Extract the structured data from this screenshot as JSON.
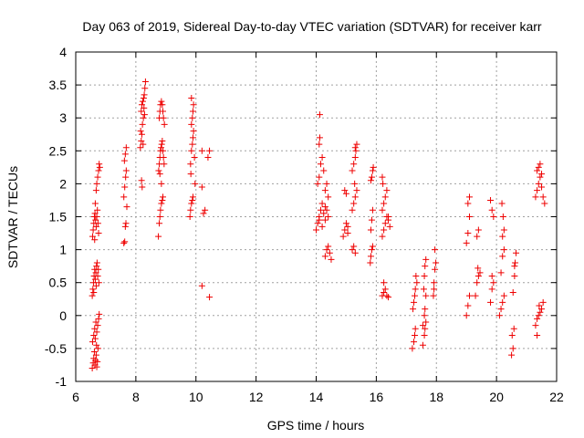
{
  "chart_data": {
    "type": "scatter",
    "title": "Day 063 of 2019, Sidereal Day-to-day VTEC variation (SDTVAR) for receiver karr",
    "xlabel": "GPS time / hours",
    "ylabel": "SDTVAR / TECUs",
    "xlim": [
      6,
      22
    ],
    "ylim": [
      -1,
      4
    ],
    "xticks": [
      6,
      8,
      10,
      12,
      14,
      16,
      18,
      20,
      22
    ],
    "yticks": [
      -1,
      -0.5,
      0,
      0.5,
      1,
      1.5,
      2,
      2.5,
      3,
      3.5,
      4
    ],
    "xtick_labels": [
      "6",
      "8",
      "10",
      "12",
      "14",
      "16",
      "18",
      "20",
      "22"
    ],
    "ytick_labels": [
      "-1",
      "-0.5",
      "0",
      "0.5",
      "1",
      "1.5",
      "2",
      "2.5",
      "3",
      "3.5",
      "4"
    ],
    "grid": true,
    "marker": "+",
    "marker_color": "#ee0000",
    "series": [
      {
        "name": "SDTVAR",
        "points": [
          [
            6.55,
            -0.8
          ],
          [
            6.58,
            -0.72
          ],
          [
            6.6,
            -0.65
          ],
          [
            6.62,
            -0.55
          ],
          [
            6.64,
            -0.75
          ],
          [
            6.66,
            -0.68
          ],
          [
            6.68,
            -0.6
          ],
          [
            6.7,
            -0.78
          ],
          [
            6.72,
            -0.7
          ],
          [
            6.74,
            -0.5
          ],
          [
            6.56,
            -0.4
          ],
          [
            6.6,
            -0.3
          ],
          [
            6.63,
            -0.2
          ],
          [
            6.67,
            -0.1
          ],
          [
            6.7,
            -0.25
          ],
          [
            6.73,
            -0.15
          ],
          [
            6.76,
            -0.05
          ],
          [
            6.78,
            0.02
          ],
          [
            6.65,
            -0.35
          ],
          [
            6.69,
            -0.45
          ],
          [
            6.55,
            0.3
          ],
          [
            6.57,
            0.4
          ],
          [
            6.59,
            0.5
          ],
          [
            6.61,
            0.6
          ],
          [
            6.63,
            0.7
          ],
          [
            6.65,
            0.55
          ],
          [
            6.67,
            0.65
          ],
          [
            6.69,
            0.75
          ],
          [
            6.71,
            0.8
          ],
          [
            6.73,
            0.6
          ],
          [
            6.75,
            0.7
          ],
          [
            6.77,
            0.5
          ],
          [
            6.6,
            0.35
          ],
          [
            6.68,
            0.45
          ],
          [
            6.56,
            1.2
          ],
          [
            6.58,
            1.3
          ],
          [
            6.6,
            1.4
          ],
          [
            6.62,
            1.5
          ],
          [
            6.64,
            1.55
          ],
          [
            6.66,
            1.45
          ],
          [
            6.68,
            1.35
          ],
          [
            6.7,
            1.5
          ],
          [
            6.72,
            1.6
          ],
          [
            6.74,
            1.4
          ],
          [
            6.76,
            1.25
          ],
          [
            6.63,
            1.15
          ],
          [
            6.65,
            1.7
          ],
          [
            6.68,
            1.9
          ],
          [
            6.7,
            2.0
          ],
          [
            6.73,
            2.1
          ],
          [
            6.76,
            2.2
          ],
          [
            6.78,
            2.3
          ],
          [
            6.8,
            2.25
          ],
          [
            7.6,
            1.1
          ],
          [
            7.63,
            1.12
          ],
          [
            7.65,
            1.35
          ],
          [
            7.67,
            1.4
          ],
          [
            7.6,
            1.8
          ],
          [
            7.63,
            1.95
          ],
          [
            7.66,
            2.1
          ],
          [
            7.68,
            2.2
          ],
          [
            7.62,
            2.35
          ],
          [
            7.65,
            2.45
          ],
          [
            7.68,
            2.55
          ],
          [
            7.7,
            1.65
          ],
          [
            8.15,
            2.55
          ],
          [
            8.18,
            2.65
          ],
          [
            8.2,
            2.75
          ],
          [
            8.22,
            2.9
          ],
          [
            8.25,
            3.0
          ],
          [
            8.18,
            3.1
          ],
          [
            8.2,
            3.2
          ],
          [
            8.23,
            3.25
          ],
          [
            8.26,
            3.3
          ],
          [
            8.28,
            3.35
          ],
          [
            8.3,
            3.45
          ],
          [
            8.32,
            3.55
          ],
          [
            8.16,
            2.8
          ],
          [
            8.24,
            2.6
          ],
          [
            8.27,
            3.15
          ],
          [
            8.21,
            1.95
          ],
          [
            8.19,
            2.05
          ],
          [
            8.29,
            3.05
          ],
          [
            8.75,
            1.2
          ],
          [
            8.78,
            1.4
          ],
          [
            8.8,
            1.5
          ],
          [
            8.82,
            1.6
          ],
          [
            8.85,
            1.7
          ],
          [
            8.88,
            1.75
          ],
          [
            8.9,
            1.8
          ],
          [
            8.76,
            2.2
          ],
          [
            8.78,
            2.3
          ],
          [
            8.8,
            2.4
          ],
          [
            8.82,
            2.5
          ],
          [
            8.84,
            2.55
          ],
          [
            8.86,
            2.6
          ],
          [
            8.88,
            2.65
          ],
          [
            8.9,
            2.5
          ],
          [
            8.92,
            2.4
          ],
          [
            8.94,
            2.3
          ],
          [
            8.8,
            2.15
          ],
          [
            8.85,
            2.0
          ],
          [
            8.78,
            3.0
          ],
          [
            8.8,
            3.1
          ],
          [
            8.82,
            3.2
          ],
          [
            8.85,
            3.25
          ],
          [
            8.88,
            3.2
          ],
          [
            8.9,
            3.1
          ],
          [
            8.92,
            3.0
          ],
          [
            8.95,
            2.9
          ],
          [
            9.8,
            1.5
          ],
          [
            9.82,
            1.6
          ],
          [
            9.85,
            1.7
          ],
          [
            9.88,
            1.75
          ],
          [
            9.9,
            1.8
          ],
          [
            9.82,
            2.3
          ],
          [
            9.85,
            2.5
          ],
          [
            9.88,
            2.6
          ],
          [
            9.9,
            2.7
          ],
          [
            9.92,
            2.8
          ],
          [
            9.85,
            2.9
          ],
          [
            9.88,
            3.0
          ],
          [
            9.9,
            3.1
          ],
          [
            9.92,
            3.2
          ],
          [
            9.85,
            3.3
          ],
          [
            9.95,
            2.4
          ],
          [
            9.83,
            2.15
          ],
          [
            9.97,
            2.0
          ],
          [
            10.2,
            0.45
          ],
          [
            10.2,
            1.95
          ],
          [
            10.2,
            2.5
          ],
          [
            10.4,
            2.4
          ],
          [
            10.45,
            2.5
          ],
          [
            10.3,
            1.6
          ],
          [
            10.45,
            0.28
          ],
          [
            10.25,
            1.55
          ],
          [
            14.0,
            1.3
          ],
          [
            14.05,
            1.4
          ],
          [
            14.1,
            1.5
          ],
          [
            14.15,
            1.6
          ],
          [
            14.2,
            1.7
          ],
          [
            14.25,
            1.55
          ],
          [
            14.3,
            1.45
          ],
          [
            14.35,
            1.6
          ],
          [
            14.4,
            1.5
          ],
          [
            14.1,
            1.45
          ],
          [
            14.2,
            1.35
          ],
          [
            14.3,
            1.65
          ],
          [
            14.05,
            2.0
          ],
          [
            14.1,
            2.1
          ],
          [
            14.15,
            2.3
          ],
          [
            14.2,
            2.4
          ],
          [
            14.25,
            2.2
          ],
          [
            14.3,
            1.9
          ],
          [
            14.35,
            2.0
          ],
          [
            14.4,
            1.8
          ],
          [
            14.1,
            2.6
          ],
          [
            14.12,
            2.7
          ],
          [
            14.12,
            3.05
          ],
          [
            14.3,
            0.9
          ],
          [
            14.35,
            1.0
          ],
          [
            14.4,
            1.05
          ],
          [
            14.45,
            0.95
          ],
          [
            14.5,
            0.85
          ],
          [
            14.9,
            1.2
          ],
          [
            14.95,
            1.3
          ],
          [
            15.0,
            1.4
          ],
          [
            15.05,
            1.35
          ],
          [
            14.95,
            1.9
          ],
          [
            15.0,
            1.85
          ],
          [
            15.05,
            1.25
          ],
          [
            15.2,
            1.0
          ],
          [
            15.25,
            1.05
          ],
          [
            15.3,
            0.95
          ],
          [
            15.2,
            1.6
          ],
          [
            15.25,
            1.7
          ],
          [
            15.3,
            1.8
          ],
          [
            15.35,
            1.9
          ],
          [
            15.2,
            2.2
          ],
          [
            15.25,
            2.3
          ],
          [
            15.3,
            2.4
          ],
          [
            15.32,
            2.5
          ],
          [
            15.35,
            2.6
          ],
          [
            15.3,
            2.55
          ],
          [
            15.28,
            2.0
          ],
          [
            15.8,
            0.8
          ],
          [
            15.82,
            0.9
          ],
          [
            15.85,
            1.0
          ],
          [
            15.88,
            1.05
          ],
          [
            15.82,
            1.3
          ],
          [
            15.85,
            1.45
          ],
          [
            15.88,
            1.6
          ],
          [
            15.85,
            2.1
          ],
          [
            15.88,
            2.2
          ],
          [
            15.9,
            2.25
          ],
          [
            15.82,
            2.05
          ],
          [
            16.2,
            0.3
          ],
          [
            16.25,
            0.35
          ],
          [
            16.3,
            0.4
          ],
          [
            16.35,
            0.3
          ],
          [
            16.4,
            0.28
          ],
          [
            16.25,
            0.5
          ],
          [
            16.2,
            1.2
          ],
          [
            16.25,
            1.3
          ],
          [
            16.3,
            1.4
          ],
          [
            16.35,
            1.5
          ],
          [
            16.4,
            1.45
          ],
          [
            16.45,
            1.35
          ],
          [
            16.2,
            1.6
          ],
          [
            16.25,
            1.7
          ],
          [
            16.3,
            1.8
          ],
          [
            16.35,
            1.9
          ],
          [
            16.4,
            1.5
          ],
          [
            16.2,
            2.1
          ],
          [
            16.22,
            2.0
          ],
          [
            17.2,
            -0.5
          ],
          [
            17.25,
            -0.4
          ],
          [
            17.28,
            -0.3
          ],
          [
            17.3,
            -0.2
          ],
          [
            17.22,
            0.1
          ],
          [
            17.25,
            0.2
          ],
          [
            17.3,
            0.4
          ],
          [
            17.35,
            0.5
          ],
          [
            17.32,
            0.6
          ],
          [
            17.28,
            0.3
          ],
          [
            17.55,
            -0.45
          ],
          [
            17.6,
            -0.3
          ],
          [
            17.62,
            -0.2
          ],
          [
            17.65,
            -0.1
          ],
          [
            17.6,
            0.0
          ],
          [
            17.62,
            0.1
          ],
          [
            17.65,
            0.3
          ],
          [
            17.6,
            0.6
          ],
          [
            17.62,
            0.75
          ],
          [
            17.65,
            0.85
          ],
          [
            17.58,
            0.4
          ],
          [
            17.55,
            -0.15
          ],
          [
            17.9,
            0.3
          ],
          [
            17.92,
            0.5
          ],
          [
            17.95,
            0.7
          ],
          [
            17.98,
            0.8
          ],
          [
            17.95,
            1.0
          ],
          [
            17.92,
            0.4
          ],
          [
            19.0,
            0.0
          ],
          [
            19.05,
            0.15
          ],
          [
            19.1,
            0.3
          ],
          [
            19.0,
            1.1
          ],
          [
            19.05,
            1.25
          ],
          [
            19.1,
            1.5
          ],
          [
            19.05,
            1.7
          ],
          [
            19.1,
            1.8
          ],
          [
            19.3,
            0.3
          ],
          [
            19.35,
            0.5
          ],
          [
            19.4,
            0.6
          ],
          [
            19.45,
            0.65
          ],
          [
            19.38,
            0.72
          ],
          [
            19.35,
            1.2
          ],
          [
            19.4,
            1.3
          ],
          [
            19.8,
            0.2
          ],
          [
            19.85,
            0.4
          ],
          [
            19.9,
            0.5
          ],
          [
            19.85,
            0.6
          ],
          [
            19.8,
            1.75
          ],
          [
            19.85,
            1.6
          ],
          [
            19.9,
            1.5
          ],
          [
            20.1,
            0.0
          ],
          [
            20.15,
            0.1
          ],
          [
            20.2,
            0.2
          ],
          [
            20.25,
            0.3
          ],
          [
            20.15,
            0.65
          ],
          [
            20.2,
            0.9
          ],
          [
            20.25,
            1.0
          ],
          [
            20.2,
            1.2
          ],
          [
            20.25,
            1.3
          ],
          [
            20.22,
            1.5
          ],
          [
            20.18,
            1.7
          ],
          [
            20.5,
            -0.6
          ],
          [
            20.55,
            -0.5
          ],
          [
            20.52,
            -0.3
          ],
          [
            20.58,
            -0.2
          ],
          [
            20.55,
            0.35
          ],
          [
            20.6,
            0.6
          ],
          [
            20.62,
            0.8
          ],
          [
            20.65,
            0.95
          ],
          [
            20.6,
            0.75
          ],
          [
            21.3,
            -0.15
          ],
          [
            21.35,
            -0.05
          ],
          [
            21.4,
            0.0
          ],
          [
            21.45,
            0.05
          ],
          [
            21.5,
            0.1
          ],
          [
            21.55,
            0.2
          ],
          [
            21.35,
            -0.3
          ],
          [
            21.42,
            0.15
          ],
          [
            21.3,
            1.8
          ],
          [
            21.35,
            1.9
          ],
          [
            21.4,
            2.0
          ],
          [
            21.45,
            2.1
          ],
          [
            21.5,
            1.95
          ],
          [
            21.55,
            1.8
          ],
          [
            21.6,
            1.7
          ],
          [
            21.35,
            2.2
          ],
          [
            21.4,
            2.25
          ],
          [
            21.45,
            2.3
          ],
          [
            21.5,
            2.15
          ]
        ]
      }
    ]
  }
}
